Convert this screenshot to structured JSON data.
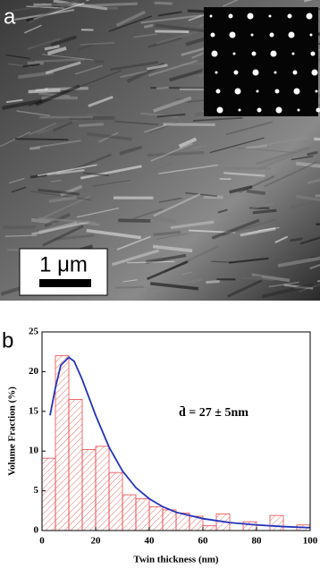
{
  "panel_a": {
    "label": "a",
    "scale_bar": "1 μm"
  },
  "chart_data": {
    "type": "histogram",
    "panel_label": "b",
    "x_label": "Twin thickness (nm)",
    "y_label": "Volume Fraction (%)",
    "annotation": "d̄ = 27 ± 5nm",
    "bins": [
      0,
      5,
      10,
      15,
      20,
      25,
      30,
      35,
      40,
      45,
      50,
      55,
      60,
      65,
      70,
      75,
      80,
      85,
      90,
      95,
      100
    ],
    "values": [
      9.1,
      22,
      16.5,
      10.2,
      10.6,
      7.3,
      4.5,
      4.0,
      3.0,
      2.6,
      2.2,
      1.8,
      0.6,
      2.1,
      0,
      1.1,
      0,
      1.9,
      0,
      0.7
    ],
    "color": "#e8484a",
    "fit": {
      "x": [
        3,
        5,
        7,
        10,
        12,
        15,
        20,
        25,
        30,
        35,
        40,
        45,
        50,
        60,
        70,
        80,
        90,
        100
      ],
      "values": [
        14.5,
        18,
        20.8,
        21.8,
        21.3,
        19,
        14.5,
        10.5,
        7.5,
        5.4,
        4,
        3,
        2.3,
        1.5,
        1,
        0.7,
        0.5,
        0.35
      ],
      "color": "#2233bb"
    },
    "xlim": [
      0,
      100
    ],
    "ylim": [
      0,
      25
    ],
    "xticks": [
      0,
      20,
      40,
      60,
      80,
      100
    ],
    "yticks": [
      0,
      5,
      10,
      15,
      20,
      25
    ]
  }
}
